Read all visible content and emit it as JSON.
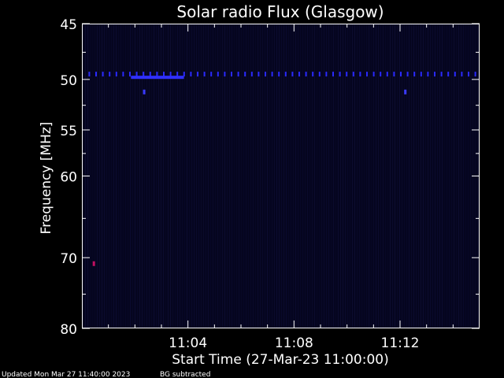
{
  "chart_data": {
    "type": "heatmap",
    "title": "Solar radio Flux (Glasgow)",
    "xlabel": "Start Time (27-Mar-23 11:00:00)",
    "ylabel": "Frequency [MHz]",
    "x_range_minutes": [
      0,
      15
    ],
    "x_ticks": [
      {
        "value": 4,
        "label": "11:04"
      },
      {
        "value": 8,
        "label": "11:08"
      },
      {
        "value": 12,
        "label": "11:12"
      }
    ],
    "y_scale": "log",
    "y_range": [
      45,
      80
    ],
    "y_inverted": true,
    "y_ticks": [
      {
        "value": 45,
        "label": "45"
      },
      {
        "value": 50,
        "label": "50"
      },
      {
        "value": 55,
        "label": "55"
      },
      {
        "value": 60,
        "label": "60"
      },
      {
        "value": 70,
        "label": "70"
      },
      {
        "value": 80,
        "label": "80"
      }
    ],
    "background_color": "#000000",
    "plot_color": "#05051f",
    "features": [
      {
        "name": "interference-line",
        "freq_mhz": 49.5,
        "time_start": 0.25,
        "time_end": 15,
        "color": "#2a2aff"
      },
      {
        "name": "burst-segment",
        "freq_mhz": 49.8,
        "time_start": 1.85,
        "time_end": 3.85,
        "color": "#3030ff"
      },
      {
        "name": "spot",
        "freq_mhz": 51.2,
        "time": 2.35,
        "color": "#3a3aff"
      },
      {
        "name": "spot",
        "freq_mhz": 51.2,
        "time": 12.2,
        "color": "#3a3aff"
      },
      {
        "name": "spot",
        "freq_mhz": 70.8,
        "time": 0.45,
        "color": "#c01060"
      }
    ]
  },
  "footer": {
    "updated": "Updated Mon Mar 27 11:40:00 2023",
    "note": "BG subtracted"
  }
}
